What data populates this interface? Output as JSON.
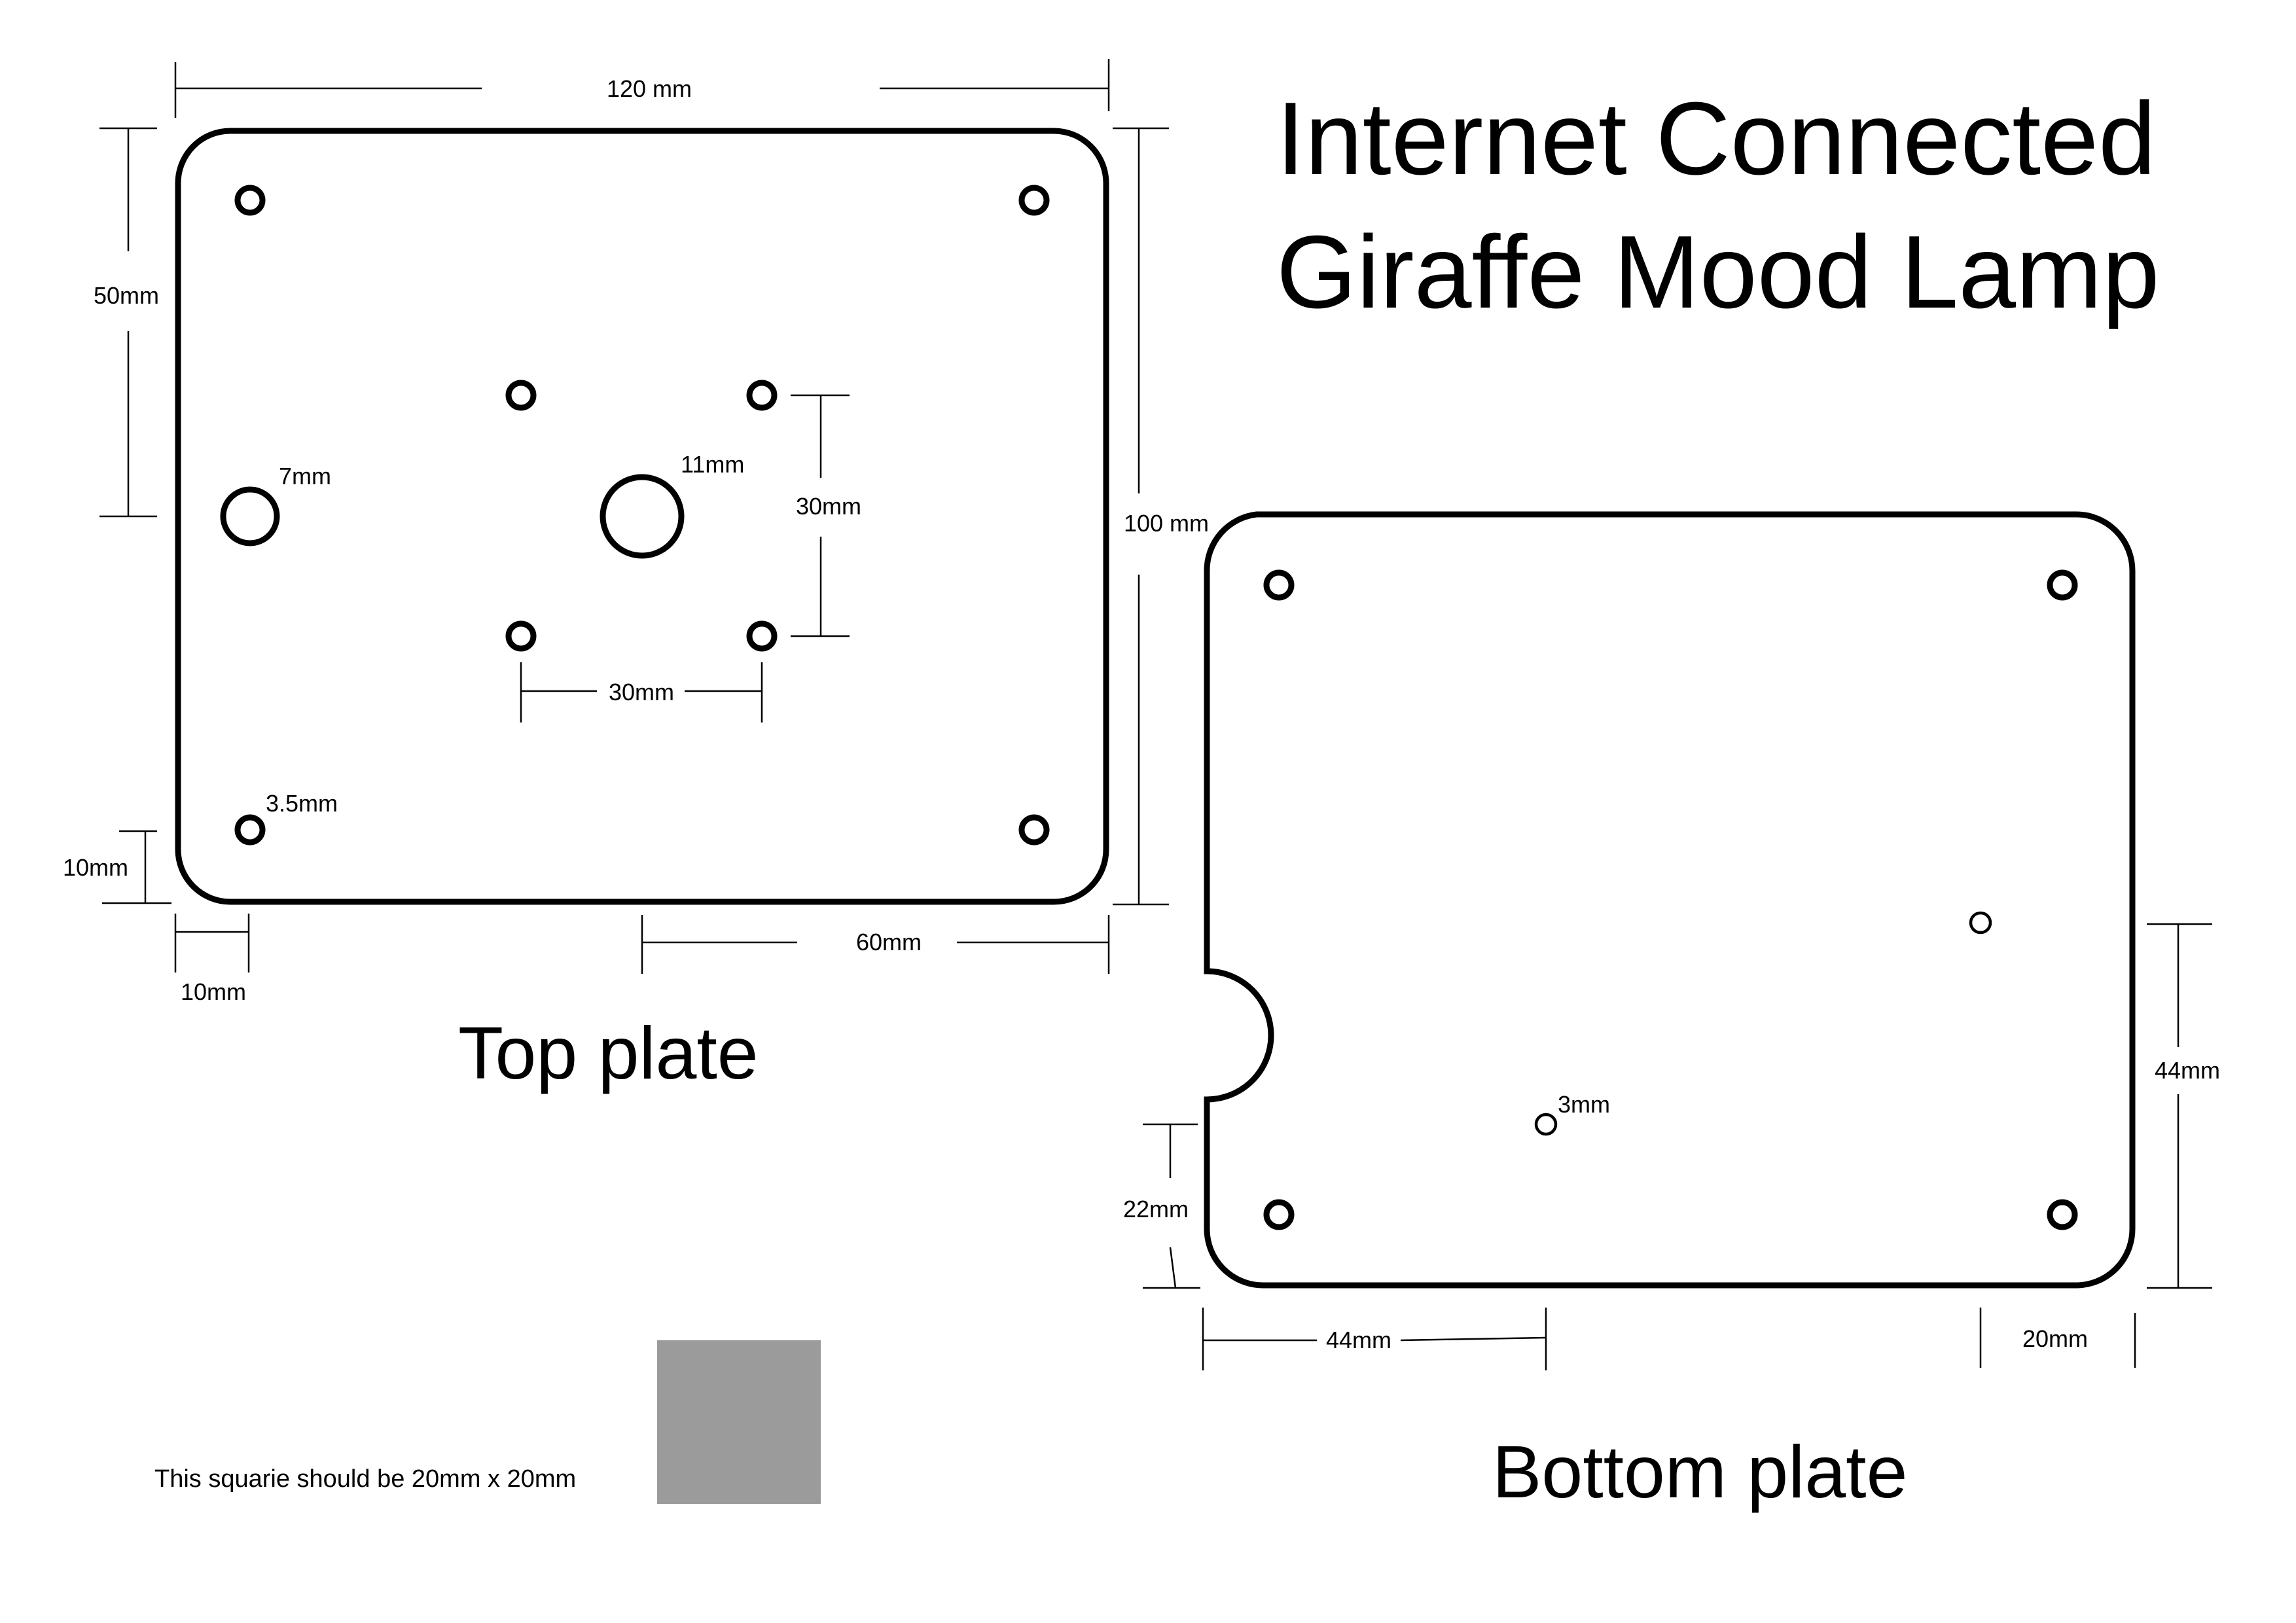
{
  "title": {
    "line1": "Internet Connected",
    "line2": "Giraffe Mood Lamp"
  },
  "top_plate": {
    "label": "Top plate",
    "dims": {
      "width": "120 mm",
      "height": "100 mm",
      "corner_hole_offset_y": "50mm",
      "left_hole": "7mm",
      "center_hole": "11mm",
      "square_v": "30mm",
      "square_h": "30mm",
      "mount_hole": "3.5mm",
      "edge_offset_y": "10mm",
      "edge_offset_x": "10mm",
      "center_offset": "60mm"
    }
  },
  "bottom_plate": {
    "label": "Bottom plate",
    "dims": {
      "hole_height": "44mm",
      "small_hole": "3mm",
      "notch_offset": "22mm",
      "hole_x": "44mm",
      "right_offset": "20mm"
    }
  },
  "calibration": {
    "note": "This squarie should be 20mm x 20mm",
    "swatch_color": "#9b9b9b"
  }
}
